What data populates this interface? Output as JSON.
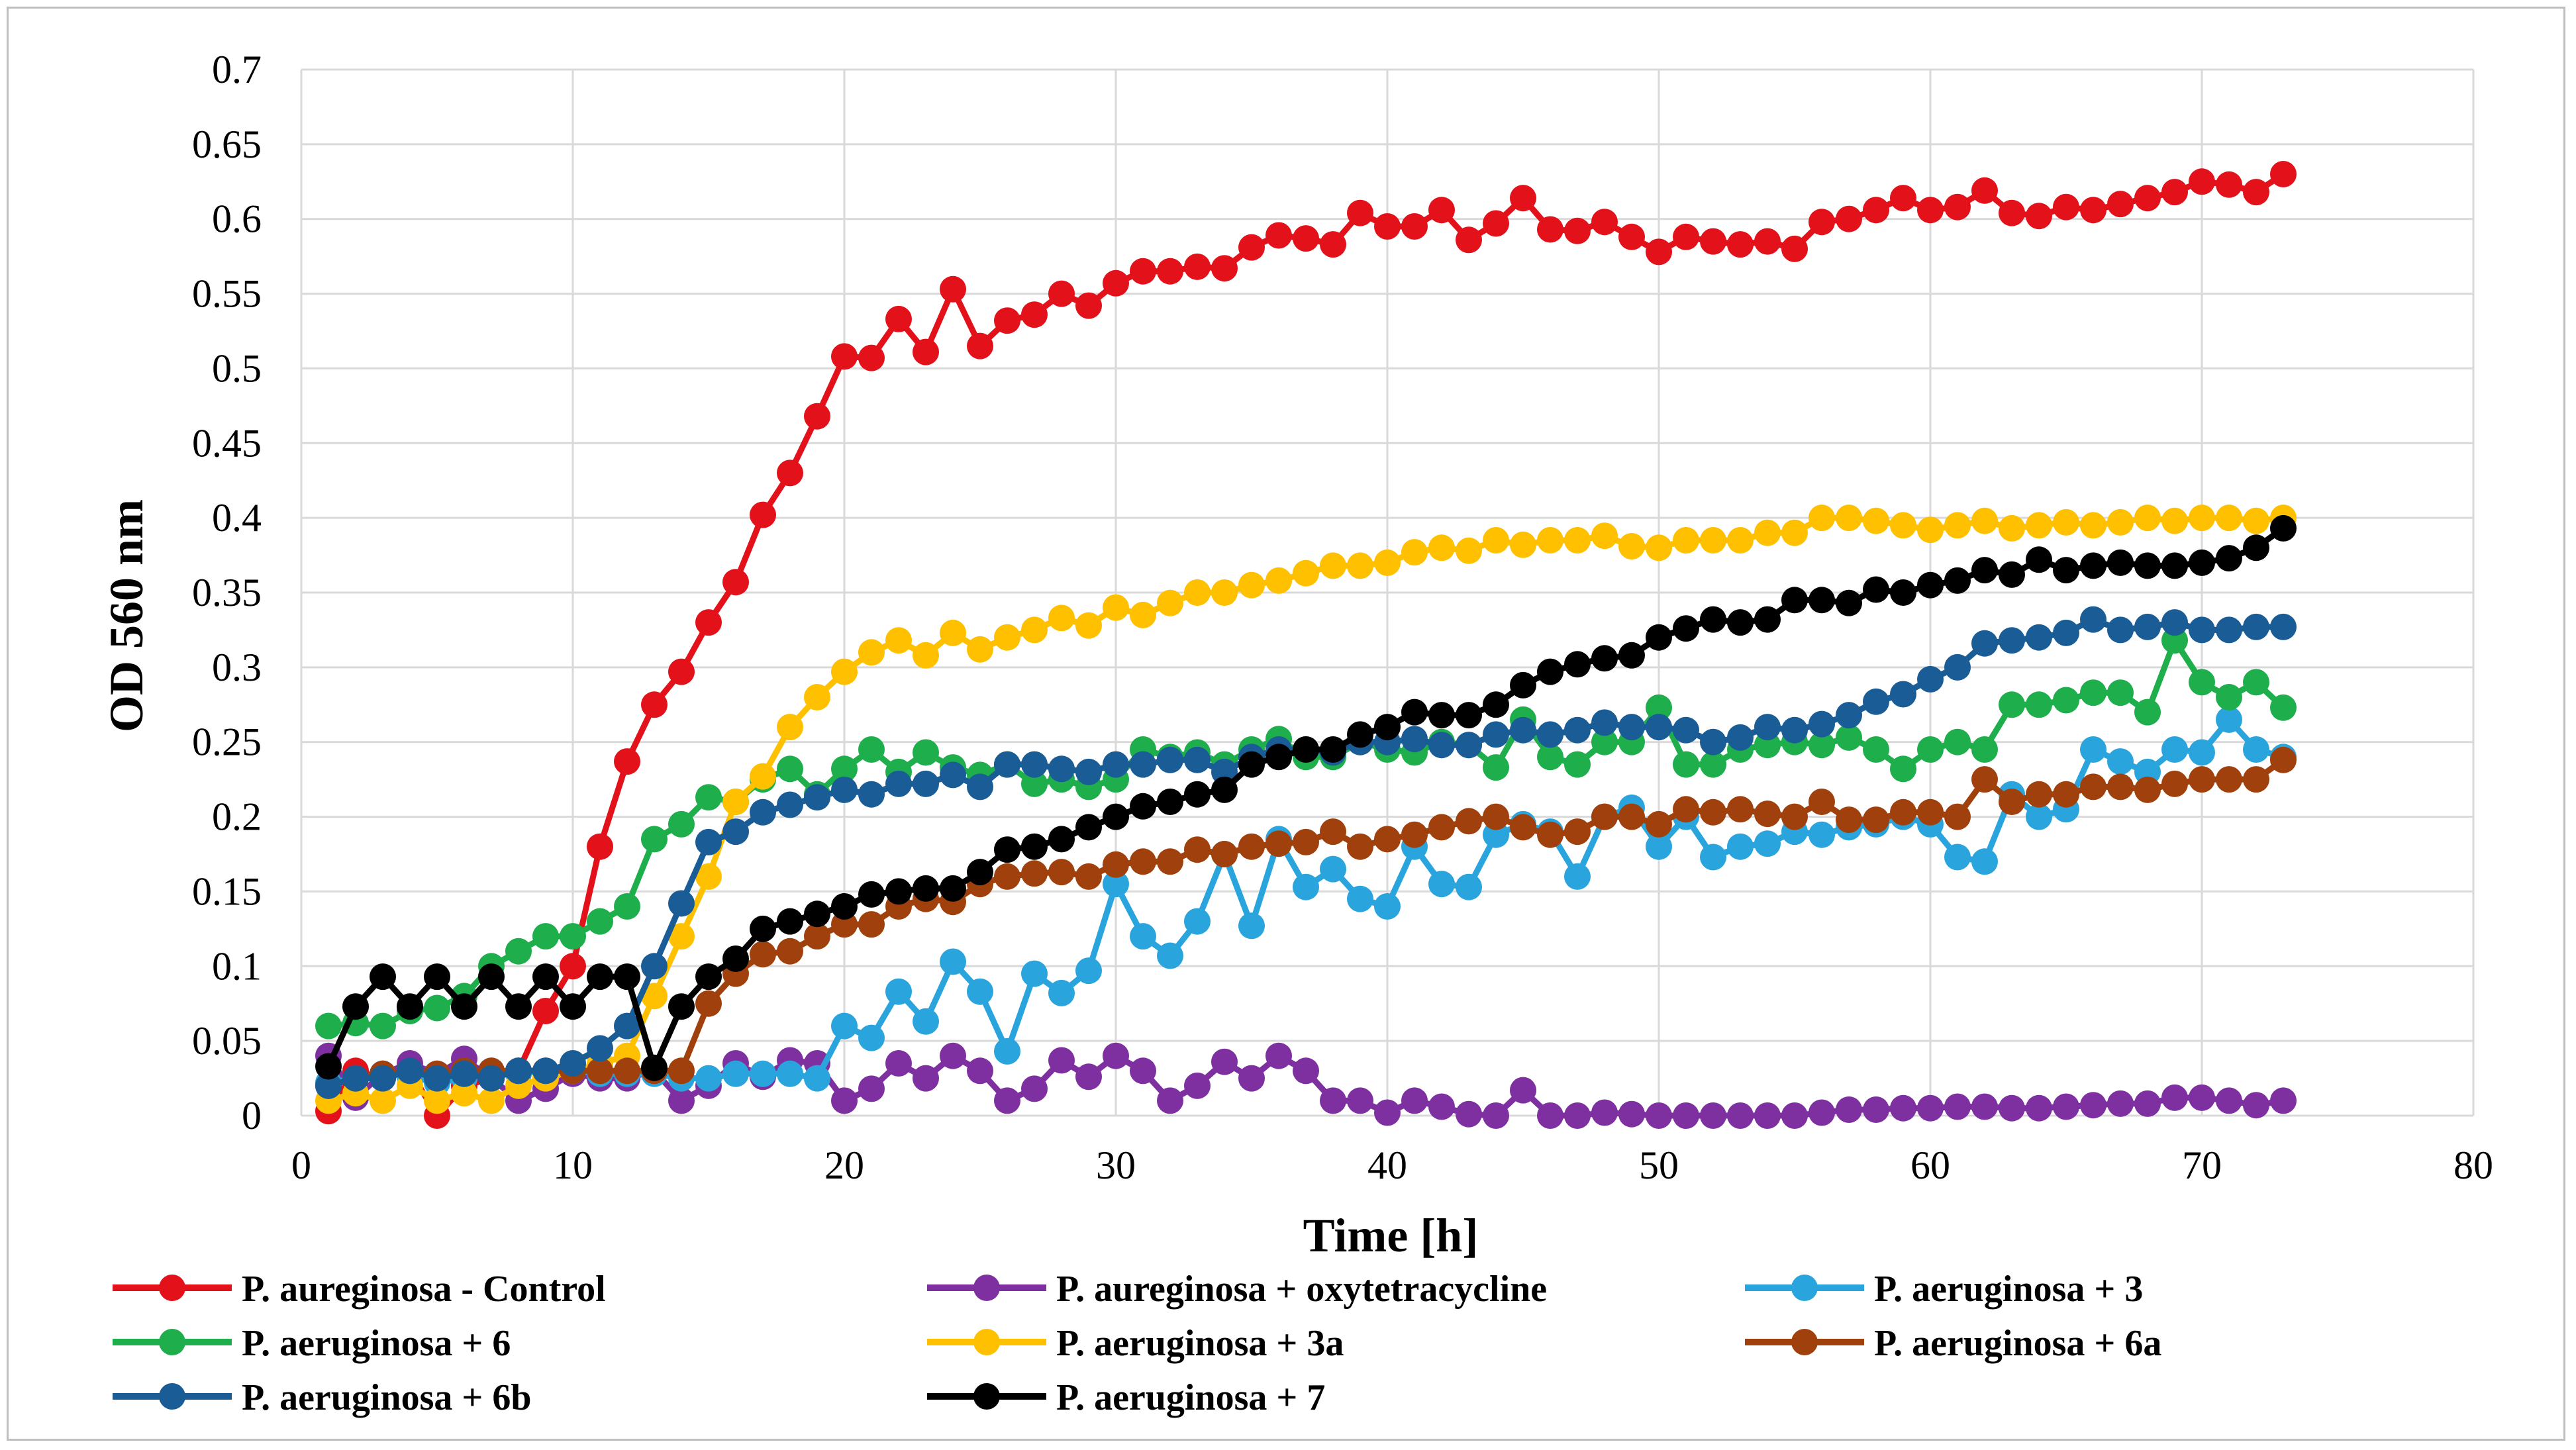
{
  "chart_data": {
    "type": "line",
    "title": "",
    "xlabel": "Time [h]",
    "ylabel": "OD 560 nm",
    "xlim": [
      0,
      80
    ],
    "ylim": [
      0,
      0.7
    ],
    "xticks": [
      "0",
      "10",
      "20",
      "30",
      "40",
      "50",
      "60",
      "70",
      "80"
    ],
    "yticks": [
      "0",
      "0.05",
      "0.1",
      "0.15",
      "0.2",
      "0.25",
      "0.3",
      "0.35",
      "0.4",
      "0.45",
      "0.5",
      "0.55",
      "0.6",
      "0.65",
      "0.7"
    ],
    "grid": true,
    "legend_position": "bottom",
    "series": [
      {
        "name": "P. aureginosa - Control",
        "color": "#e2111a",
        "x": [
          1,
          2,
          3,
          4,
          5,
          6,
          7,
          8,
          9,
          10,
          11,
          12,
          13,
          14,
          15,
          16,
          17,
          18,
          19,
          20,
          21,
          22,
          23,
          24,
          25,
          26,
          27,
          28,
          29,
          30,
          31,
          32,
          33,
          34,
          35,
          36,
          37,
          38,
          39,
          40,
          41,
          42,
          43,
          44,
          45,
          46,
          47,
          48,
          49,
          50,
          51,
          52,
          53,
          54,
          55,
          56,
          57,
          58,
          59,
          60,
          61,
          62,
          63,
          64,
          65,
          66,
          67,
          68,
          69,
          70,
          71,
          72,
          73
        ],
        "y": [
          0.003,
          0.03,
          0.025,
          0.03,
          0.0,
          0.02,
          0.025,
          0.03,
          0.07,
          0.1,
          0.18,
          0.237,
          0.275,
          0.297,
          0.33,
          0.357,
          0.402,
          0.43,
          0.468,
          0.508,
          0.507,
          0.533,
          0.511,
          0.553,
          0.515,
          0.532,
          0.536,
          0.55,
          0.542,
          0.557,
          0.565,
          0.565,
          0.568,
          0.567,
          0.581,
          0.589,
          0.587,
          0.583,
          0.604,
          0.595,
          0.595,
          0.606,
          0.586,
          0.597,
          0.614,
          0.593,
          0.592,
          0.598,
          0.588,
          0.578,
          0.588,
          0.585,
          0.583,
          0.585,
          0.58,
          0.598,
          0.6,
          0.606,
          0.614,
          0.606,
          0.608,
          0.619,
          0.604,
          0.602,
          0.608,
          0.606,
          0.61,
          0.614,
          0.618,
          0.625,
          0.623,
          0.618,
          0.63
        ]
      },
      {
        "name": "P. aureginosa + oxytetracycline",
        "color": "#7e30a0",
        "x": [
          1,
          2,
          3,
          4,
          5,
          6,
          7,
          8,
          9,
          10,
          11,
          12,
          13,
          14,
          15,
          16,
          17,
          18,
          19,
          20,
          21,
          22,
          23,
          24,
          25,
          26,
          27,
          28,
          29,
          30,
          31,
          32,
          33,
          34,
          35,
          36,
          37,
          38,
          39,
          40,
          41,
          42,
          43,
          44,
          45,
          46,
          47,
          48,
          49,
          50,
          51,
          52,
          53,
          54,
          55,
          56,
          57,
          58,
          59,
          60,
          61,
          62,
          63,
          64,
          65,
          66,
          67,
          68,
          69,
          70,
          71,
          72,
          73
        ],
        "y": [
          0.04,
          0.012,
          0.028,
          0.035,
          0.028,
          0.038,
          0.025,
          0.01,
          0.018,
          0.028,
          0.025,
          0.025,
          0.03,
          0.01,
          0.02,
          0.035,
          0.026,
          0.037,
          0.035,
          0.01,
          0.018,
          0.035,
          0.025,
          0.04,
          0.03,
          0.01,
          0.018,
          0.037,
          0.026,
          0.04,
          0.03,
          0.01,
          0.02,
          0.036,
          0.025,
          0.04,
          0.03,
          0.01,
          0.01,
          0.002,
          0.01,
          0.006,
          0.001,
          0.0,
          0.017,
          0.0,
          0.0,
          0.002,
          0.001,
          0.0,
          0.0,
          0.0,
          0.0,
          0.0,
          0.0,
          0.002,
          0.004,
          0.004,
          0.005,
          0.005,
          0.006,
          0.006,
          0.005,
          0.005,
          0.006,
          0.007,
          0.008,
          0.008,
          0.012,
          0.012,
          0.01,
          0.007,
          0.01
        ]
      },
      {
        "name": "P. aeruginosa + 3",
        "color": "#2aa4dd",
        "x": [
          1,
          2,
          3,
          4,
          5,
          6,
          7,
          8,
          9,
          10,
          11,
          12,
          13,
          14,
          15,
          16,
          17,
          18,
          19,
          20,
          21,
          22,
          23,
          24,
          25,
          26,
          27,
          28,
          29,
          30,
          31,
          32,
          33,
          34,
          35,
          36,
          37,
          38,
          39,
          40,
          41,
          42,
          43,
          44,
          45,
          46,
          47,
          48,
          49,
          50,
          51,
          52,
          53,
          54,
          55,
          56,
          57,
          58,
          59,
          60,
          61,
          62,
          63,
          64,
          65,
          66,
          67,
          68,
          69,
          70,
          71,
          72,
          73
        ],
        "y": [
          0.022,
          0.025,
          0.028,
          0.026,
          0.022,
          0.025,
          0.03,
          0.028,
          0.03,
          0.03,
          0.028,
          0.028,
          0.028,
          0.025,
          0.025,
          0.028,
          0.028,
          0.028,
          0.025,
          0.06,
          0.052,
          0.083,
          0.063,
          0.103,
          0.083,
          0.043,
          0.095,
          0.082,
          0.097,
          0.155,
          0.12,
          0.107,
          0.13,
          0.175,
          0.127,
          0.185,
          0.153,
          0.165,
          0.145,
          0.14,
          0.18,
          0.155,
          0.153,
          0.188,
          0.195,
          0.19,
          0.16,
          0.2,
          0.206,
          0.18,
          0.2,
          0.173,
          0.18,
          0.182,
          0.19,
          0.188,
          0.193,
          0.195,
          0.2,
          0.195,
          0.173,
          0.17,
          0.215,
          0.2,
          0.205,
          0.245,
          0.237,
          0.23,
          0.245,
          0.243,
          0.265,
          0.245,
          0.24
        ]
      },
      {
        "name": "P. aeruginosa + 6",
        "color": "#1eae4c",
        "x": [
          1,
          2,
          3,
          4,
          5,
          6,
          7,
          8,
          9,
          10,
          11,
          12,
          13,
          14,
          15,
          16,
          17,
          18,
          19,
          20,
          21,
          22,
          23,
          24,
          25,
          26,
          27,
          28,
          29,
          30,
          31,
          32,
          33,
          34,
          35,
          36,
          37,
          38,
          39,
          40,
          41,
          42,
          43,
          44,
          45,
          46,
          47,
          48,
          49,
          50,
          51,
          52,
          53,
          54,
          55,
          56,
          57,
          58,
          59,
          60,
          61,
          62,
          63,
          64,
          65,
          66,
          67,
          68,
          69,
          70,
          71,
          72,
          73
        ],
        "y": [
          0.06,
          0.062,
          0.06,
          0.07,
          0.072,
          0.08,
          0.1,
          0.11,
          0.12,
          0.12,
          0.13,
          0.14,
          0.185,
          0.195,
          0.213,
          0.21,
          0.225,
          0.232,
          0.215,
          0.232,
          0.245,
          0.23,
          0.243,
          0.233,
          0.228,
          0.235,
          0.222,
          0.225,
          0.22,
          0.225,
          0.245,
          0.24,
          0.243,
          0.235,
          0.245,
          0.252,
          0.24,
          0.24,
          0.25,
          0.245,
          0.243,
          0.25,
          0.248,
          0.233,
          0.265,
          0.24,
          0.235,
          0.25,
          0.25,
          0.273,
          0.235,
          0.235,
          0.245,
          0.248,
          0.25,
          0.248,
          0.253,
          0.245,
          0.232,
          0.245,
          0.25,
          0.245,
          0.275,
          0.275,
          0.278,
          0.283,
          0.283,
          0.27,
          0.318,
          0.29,
          0.28,
          0.29,
          0.273
        ]
      },
      {
        "name": "P. aeruginosa + 3a",
        "color": "#ffc000",
        "x": [
          1,
          2,
          3,
          4,
          5,
          6,
          7,
          8,
          9,
          10,
          11,
          12,
          13,
          14,
          15,
          16,
          17,
          18,
          19,
          20,
          21,
          22,
          23,
          24,
          25,
          26,
          27,
          28,
          29,
          30,
          31,
          32,
          33,
          34,
          35,
          36,
          37,
          38,
          39,
          40,
          41,
          42,
          43,
          44,
          45,
          46,
          47,
          48,
          49,
          50,
          51,
          52,
          53,
          54,
          55,
          56,
          57,
          58,
          59,
          60,
          61,
          62,
          63,
          64,
          65,
          66,
          67,
          68,
          69,
          70,
          71,
          72,
          73
        ],
        "y": [
          0.01,
          0.015,
          0.01,
          0.02,
          0.01,
          0.015,
          0.01,
          0.02,
          0.025,
          0.03,
          0.035,
          0.04,
          0.08,
          0.12,
          0.16,
          0.21,
          0.227,
          0.26,
          0.28,
          0.297,
          0.31,
          0.318,
          0.308,
          0.323,
          0.312,
          0.32,
          0.325,
          0.333,
          0.328,
          0.34,
          0.335,
          0.343,
          0.35,
          0.35,
          0.355,
          0.358,
          0.363,
          0.368,
          0.368,
          0.37,
          0.377,
          0.38,
          0.378,
          0.385,
          0.382,
          0.385,
          0.385,
          0.388,
          0.381,
          0.38,
          0.385,
          0.385,
          0.385,
          0.39,
          0.39,
          0.4,
          0.4,
          0.398,
          0.395,
          0.392,
          0.395,
          0.398,
          0.393,
          0.395,
          0.397,
          0.395,
          0.397,
          0.4,
          0.398,
          0.4,
          0.4,
          0.398,
          0.4
        ]
      },
      {
        "name": "P. aeruginosa + 6a",
        "color": "#a0410d",
        "x": [
          1,
          2,
          3,
          4,
          5,
          6,
          7,
          8,
          9,
          10,
          11,
          12,
          13,
          14,
          15,
          16,
          17,
          18,
          19,
          20,
          21,
          22,
          23,
          24,
          25,
          26,
          27,
          28,
          29,
          30,
          31,
          32,
          33,
          34,
          35,
          36,
          37,
          38,
          39,
          40,
          41,
          42,
          43,
          44,
          45,
          46,
          47,
          48,
          49,
          50,
          51,
          52,
          53,
          54,
          55,
          56,
          57,
          58,
          59,
          60,
          61,
          62,
          63,
          64,
          65,
          66,
          67,
          68,
          69,
          70,
          71,
          72,
          73
        ],
        "y": [
          0.02,
          0.025,
          0.028,
          0.03,
          0.028,
          0.03,
          0.03,
          0.03,
          0.03,
          0.03,
          0.03,
          0.03,
          0.03,
          0.03,
          0.075,
          0.095,
          0.108,
          0.11,
          0.12,
          0.128,
          0.128,
          0.14,
          0.145,
          0.143,
          0.155,
          0.16,
          0.162,
          0.163,
          0.16,
          0.168,
          0.17,
          0.17,
          0.178,
          0.175,
          0.18,
          0.182,
          0.183,
          0.19,
          0.18,
          0.185,
          0.188,
          0.193,
          0.197,
          0.2,
          0.193,
          0.188,
          0.19,
          0.2,
          0.2,
          0.195,
          0.205,
          0.203,
          0.205,
          0.202,
          0.2,
          0.21,
          0.198,
          0.198,
          0.203,
          0.203,
          0.2,
          0.225,
          0.21,
          0.215,
          0.215,
          0.22,
          0.22,
          0.218,
          0.222,
          0.225,
          0.225,
          0.225,
          0.238
        ]
      },
      {
        "name": "P. aeruginosa + 6b",
        "color": "#195c96",
        "x": [
          1,
          2,
          3,
          4,
          5,
          6,
          7,
          8,
          9,
          10,
          11,
          12,
          13,
          14,
          15,
          16,
          17,
          18,
          19,
          20,
          21,
          22,
          23,
          24,
          25,
          26,
          27,
          28,
          29,
          30,
          31,
          32,
          33,
          34,
          35,
          36,
          37,
          38,
          39,
          40,
          41,
          42,
          43,
          44,
          45,
          46,
          47,
          48,
          49,
          50,
          51,
          52,
          53,
          54,
          55,
          56,
          57,
          58,
          59,
          60,
          61,
          62,
          63,
          64,
          65,
          66,
          67,
          68,
          69,
          70,
          71,
          72,
          73
        ],
        "y": [
          0.02,
          0.025,
          0.025,
          0.03,
          0.025,
          0.028,
          0.025,
          0.03,
          0.03,
          0.035,
          0.045,
          0.06,
          0.1,
          0.142,
          0.183,
          0.19,
          0.203,
          0.208,
          0.213,
          0.218,
          0.215,
          0.222,
          0.222,
          0.228,
          0.22,
          0.235,
          0.235,
          0.232,
          0.23,
          0.235,
          0.235,
          0.238,
          0.238,
          0.23,
          0.24,
          0.245,
          0.245,
          0.243,
          0.25,
          0.25,
          0.252,
          0.248,
          0.248,
          0.255,
          0.258,
          0.255,
          0.258,
          0.263,
          0.26,
          0.26,
          0.258,
          0.25,
          0.253,
          0.26,
          0.258,
          0.262,
          0.268,
          0.277,
          0.282,
          0.292,
          0.3,
          0.316,
          0.318,
          0.32,
          0.323,
          0.332,
          0.325,
          0.327,
          0.33,
          0.325,
          0.325,
          0.327,
          0.327
        ]
      },
      {
        "name": "P. aeruginosa + 7",
        "color": "#000000",
        "x": [
          1,
          2,
          3,
          4,
          5,
          6,
          7,
          8,
          9,
          10,
          11,
          12,
          13,
          14,
          15,
          16,
          17,
          18,
          19,
          20,
          21,
          22,
          23,
          24,
          25,
          26,
          27,
          28,
          29,
          30,
          31,
          32,
          33,
          34,
          35,
          36,
          37,
          38,
          39,
          40,
          41,
          42,
          43,
          44,
          45,
          46,
          47,
          48,
          49,
          50,
          51,
          52,
          53,
          54,
          55,
          56,
          57,
          58,
          59,
          60,
          61,
          62,
          63,
          64,
          65,
          66,
          67,
          68,
          69,
          70,
          71,
          72,
          73
        ],
        "y": [
          0.033,
          0.073,
          0.093,
          0.073,
          0.093,
          0.073,
          0.093,
          0.073,
          0.093,
          0.073,
          0.093,
          0.093,
          0.032,
          0.073,
          0.093,
          0.105,
          0.125,
          0.13,
          0.135,
          0.14,
          0.148,
          0.15,
          0.152,
          0.152,
          0.163,
          0.178,
          0.18,
          0.185,
          0.193,
          0.2,
          0.207,
          0.21,
          0.215,
          0.218,
          0.235,
          0.24,
          0.245,
          0.245,
          0.255,
          0.26,
          0.27,
          0.268,
          0.268,
          0.275,
          0.288,
          0.297,
          0.302,
          0.306,
          0.308,
          0.32,
          0.326,
          0.332,
          0.33,
          0.332,
          0.345,
          0.345,
          0.343,
          0.352,
          0.35,
          0.355,
          0.358,
          0.365,
          0.362,
          0.372,
          0.365,
          0.368,
          0.37,
          0.368,
          0.368,
          0.37,
          0.373,
          0.38,
          0.393
        ]
      }
    ]
  }
}
